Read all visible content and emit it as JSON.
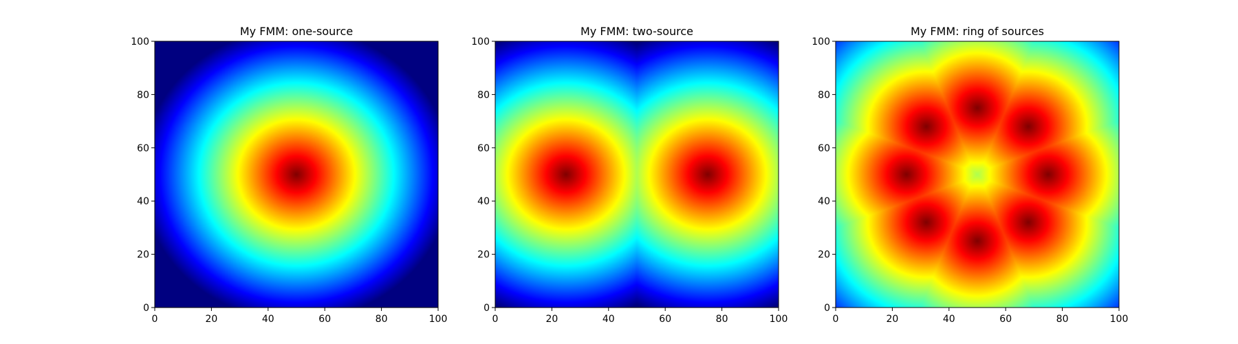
{
  "chart_data": [
    {
      "type": "heatmap",
      "title": "My FMM: one-source",
      "xlim": [
        0,
        100
      ],
      "ylim": [
        0,
        100
      ],
      "xticks": [
        0,
        20,
        40,
        60,
        80,
        100
      ],
      "yticks": [
        0,
        20,
        40,
        60,
        80,
        100
      ],
      "colormap": "jet",
      "sources": [
        [
          50,
          50
        ]
      ],
      "field": "distance from nearest source, colored with reversed jet (near = dark red, far = blue)"
    },
    {
      "type": "heatmap",
      "title": "My FMM: two-source",
      "xlim": [
        0,
        100
      ],
      "ylim": [
        0,
        100
      ],
      "xticks": [
        0,
        20,
        40,
        60,
        80,
        100
      ],
      "yticks": [
        0,
        20,
        40,
        60,
        80,
        100
      ],
      "colormap": "jet",
      "sources": [
        [
          25,
          50
        ],
        [
          75,
          50
        ]
      ]
    },
    {
      "type": "heatmap",
      "title": "My FMM: ring of sources",
      "xlim": [
        0,
        100
      ],
      "ylim": [
        0,
        100
      ],
      "xticks": [
        0,
        20,
        40,
        60,
        80,
        100
      ],
      "yticks": [
        0,
        20,
        40,
        60,
        80,
        100
      ],
      "colormap": "jet",
      "sources": [
        [
          75,
          50
        ],
        [
          68,
          68
        ],
        [
          50,
          75
        ],
        [
          32,
          68
        ],
        [
          25,
          50
        ],
        [
          32,
          32
        ],
        [
          50,
          25
        ],
        [
          68,
          32
        ]
      ]
    }
  ]
}
